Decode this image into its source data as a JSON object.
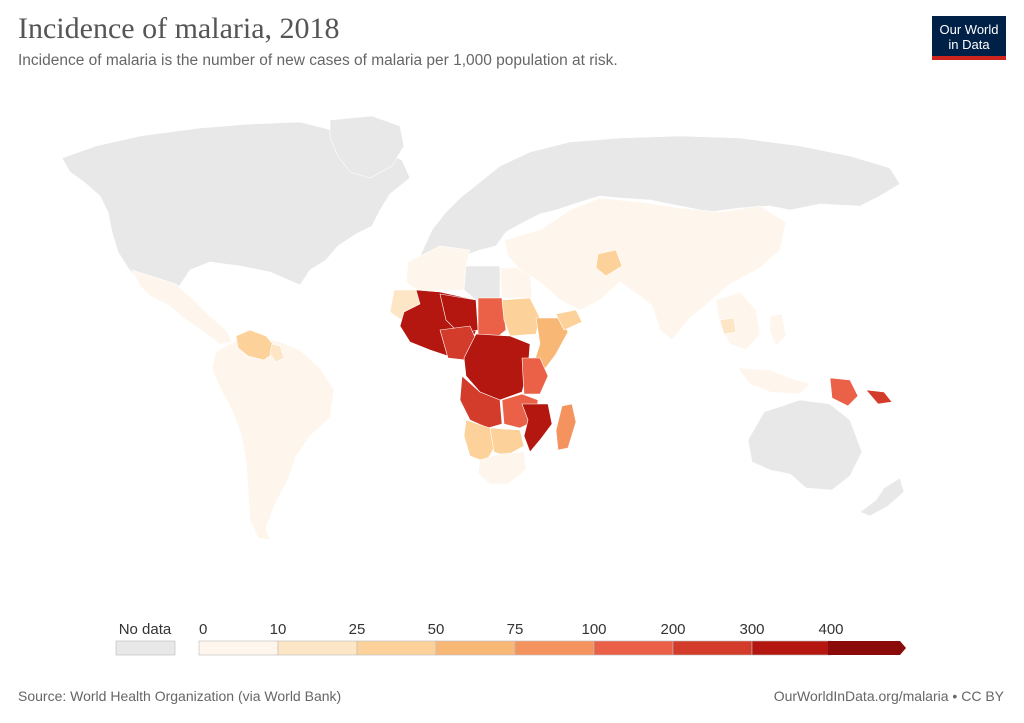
{
  "title": "Incidence of malaria, 2018",
  "subtitle": "Incidence of malaria is the number of new cases of malaria per 1,000 population at risk.",
  "logo": {
    "line1": "Our World",
    "line2": "in Data"
  },
  "legend": {
    "no_data_label": "No data",
    "no_data_color": "#e8e8e8",
    "ticks": [
      "0",
      "10",
      "25",
      "50",
      "75",
      "100",
      "200",
      "300",
      "400"
    ],
    "colors": [
      "#fef6ec",
      "#fde6c6",
      "#fcd29a",
      "#f9b775",
      "#f5935e",
      "#ea6148",
      "#d33b2b",
      "#b3170f",
      "#8b0a0a"
    ]
  },
  "footer": {
    "source": "Source: World Health Organization (via World Bank)",
    "license": "OurWorldInData.org/malaria • CC BY"
  }
}
